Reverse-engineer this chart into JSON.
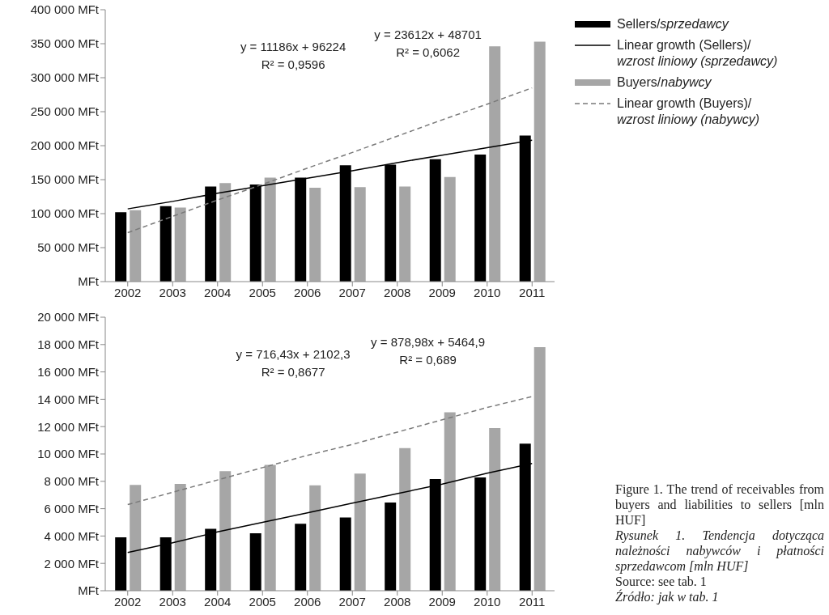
{
  "chart_data": [
    {
      "type": "bar",
      "categories": [
        "2002",
        "2003",
        "2004",
        "2005",
        "2006",
        "2007",
        "2008",
        "2009",
        "2010",
        "2011"
      ],
      "series": [
        {
          "name": "Sellers/sprzedawcy",
          "color": "#000000",
          "values": [
            102000,
            111000,
            140000,
            143000,
            153000,
            171000,
            172000,
            180000,
            187000,
            215000
          ]
        },
        {
          "name": "Linear growth (Sellers)/wzrost liniowy (sprzedawcy)",
          "type": "line",
          "color": "#000000",
          "line_style": "solid",
          "values": [
            107000,
            118000,
            130000,
            141000,
            152000,
            163000,
            175000,
            186000,
            197000,
            208000
          ]
        },
        {
          "name": "Buyers/nabywcy",
          "color": "#a6a6a6",
          "values": [
            105000,
            109000,
            145000,
            153000,
            138000,
            139000,
            140000,
            154000,
            346000,
            353000
          ]
        },
        {
          "name": "Linear growth (Buyers)/wzrost liniowy (nabywcy)",
          "type": "line",
          "color": "#7a7a7a",
          "line_style": "dashed",
          "values": [
            72000,
            96000,
            120000,
            143000,
            167000,
            190000,
            214000,
            238000,
            261000,
            285000
          ]
        }
      ],
      "ylim": [
        0,
        400000
      ],
      "yticks": [
        {
          "value": 0,
          "label": "MFt"
        },
        {
          "value": 50000,
          "label": "50 000 MFt"
        },
        {
          "value": 100000,
          "label": "100 000 MFt"
        },
        {
          "value": 150000,
          "label": "150 000 MFt"
        },
        {
          "value": 200000,
          "label": "200 000 MFt"
        },
        {
          "value": 250000,
          "label": "250 000 MFt"
        },
        {
          "value": 300000,
          "label": "300 000 MFt"
        },
        {
          "value": 350000,
          "label": "350 000 MFt"
        },
        {
          "value": 400000,
          "label": "400 000 MFt"
        }
      ],
      "legend": "right",
      "marker": "none",
      "annotations": [
        "y = 11186x + 96224",
        "R² = 0,9596",
        "y = 23612x + 48701",
        "R² = 0,6062"
      ]
    },
    {
      "type": "bar",
      "categories": [
        "2002",
        "2003",
        "2004",
        "2005",
        "2006",
        "2007",
        "2008",
        "2009",
        "2010",
        "2011"
      ],
      "series": [
        {
          "color": "#000000",
          "values": [
            3900,
            3900,
            4530,
            4200,
            4900,
            5360,
            6450,
            8160,
            8290,
            10750
          ]
        },
        {
          "type": "line",
          "color": "#000000",
          "line_style": "solid",
          "values": [
            2800,
            3500,
            4300,
            5000,
            5700,
            6400,
            7100,
            7800,
            8600,
            9300
          ]
        },
        {
          "color": "#a6a6a6",
          "values": [
            7730,
            7810,
            8750,
            9200,
            7710,
            8560,
            10430,
            13040,
            11890,
            17810
          ]
        },
        {
          "type": "line",
          "color": "#7a7a7a",
          "line_style": "dashed",
          "values": [
            6300,
            7200,
            8100,
            9000,
            9900,
            10700,
            11600,
            12500,
            13400,
            14200
          ]
        }
      ],
      "ylim": [
        0,
        20000
      ],
      "yticks": [
        {
          "value": 0,
          "label": "MFt"
        },
        {
          "value": 2000,
          "label": "2 000 MFt"
        },
        {
          "value": 4000,
          "label": "4 000 MFt"
        },
        {
          "value": 6000,
          "label": "6 000 MFt"
        },
        {
          "value": 8000,
          "label": "8 000 MFt"
        },
        {
          "value": 10000,
          "label": "10 000 MFt"
        },
        {
          "value": 12000,
          "label": "12 000 MFt"
        },
        {
          "value": 14000,
          "label": "14 000 MFt"
        },
        {
          "value": 16000,
          "label": "16 000 MFt"
        },
        {
          "value": 18000,
          "label": "18 000 MFt"
        },
        {
          "value": 20000,
          "label": "20 000 MFt"
        }
      ],
      "marker": "none",
      "annotations": [
        "y = 716,43x + 2102,3",
        "R² = 0,8677",
        "y = 878,98x + 5464,9",
        "R² = 0,689",
        "Figure 1. The trend of receivables from buyers and liabilities to sellers [mln HUF]",
        "Rysunek 1. Tendencja dotycząca należności nabywców i płatności sprzedawcom [mln HUF]",
        "Source: see tab. 1",
        "Źródło: jak w tab. 1"
      ]
    }
  ]
}
